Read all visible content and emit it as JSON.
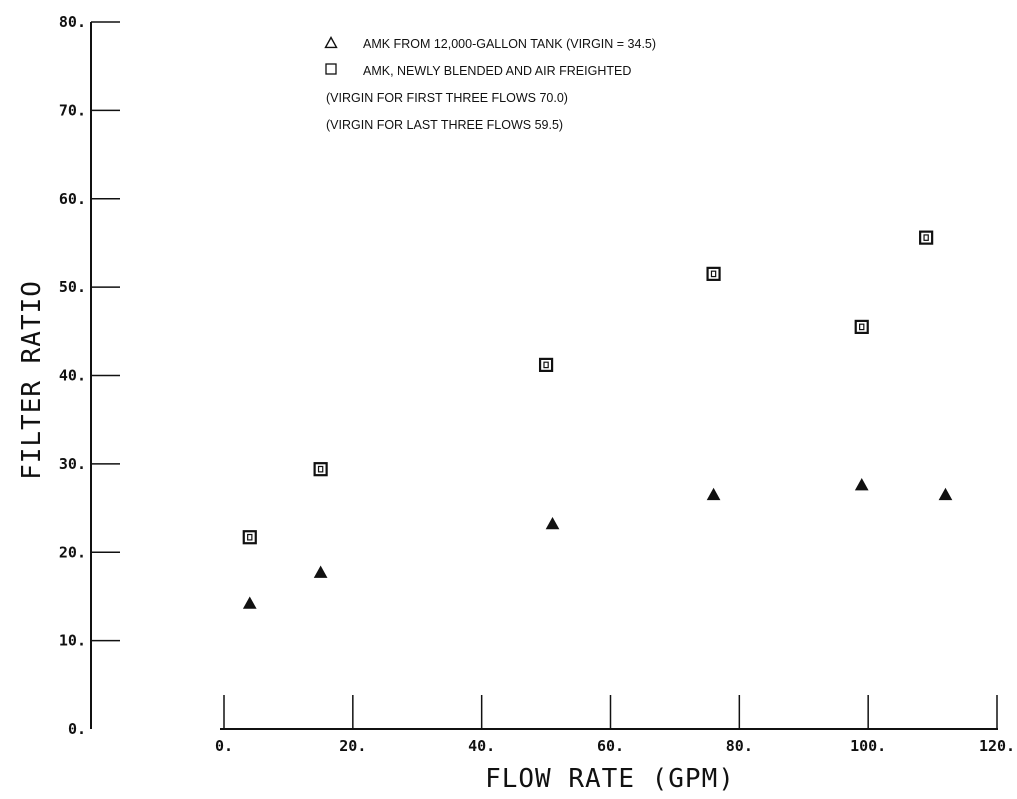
{
  "chart_data": {
    "type": "scatter",
    "xlabel": "FLOW RATE (GPM)",
    "ylabel": "FILTER RATIO",
    "xlim": [
      0,
      120
    ],
    "ylim": [
      0,
      80
    ],
    "x_ticks": [
      0,
      20,
      40,
      60,
      80,
      100,
      120
    ],
    "y_ticks": [
      0,
      10,
      20,
      30,
      40,
      50,
      60,
      70,
      80
    ],
    "x_tick_labels": [
      "0.",
      "20.",
      "40.",
      "60.",
      "80.",
      "100.",
      "120."
    ],
    "y_tick_labels": [
      "0.",
      "10.",
      "20.",
      "30.",
      "40.",
      "50.",
      "60.",
      "70.",
      "80."
    ],
    "grid": false,
    "legend_position": "top-center",
    "legend_notes": [
      "(VIRGIN FOR FIRST THREE FLOWS 70.0)",
      "(VIRGIN FOR LAST THREE FLOWS 59.5)"
    ],
    "series": [
      {
        "name": "AMK FROM 12,000-GALLON TANK (VIRGIN = 34.5)",
        "marker": "triangle",
        "x": [
          4,
          15,
          51,
          76,
          99,
          112
        ],
        "y": [
          14.2,
          17.7,
          23.2,
          26.5,
          27.6,
          26.5
        ]
      },
      {
        "name": "AMK, NEWLY BLENDED AND AIR FREIGHTED",
        "marker": "square",
        "x": [
          4,
          15,
          50,
          76,
          99,
          109
        ],
        "y": [
          21.7,
          29.4,
          41.2,
          51.5,
          45.5,
          55.6
        ]
      }
    ]
  }
}
